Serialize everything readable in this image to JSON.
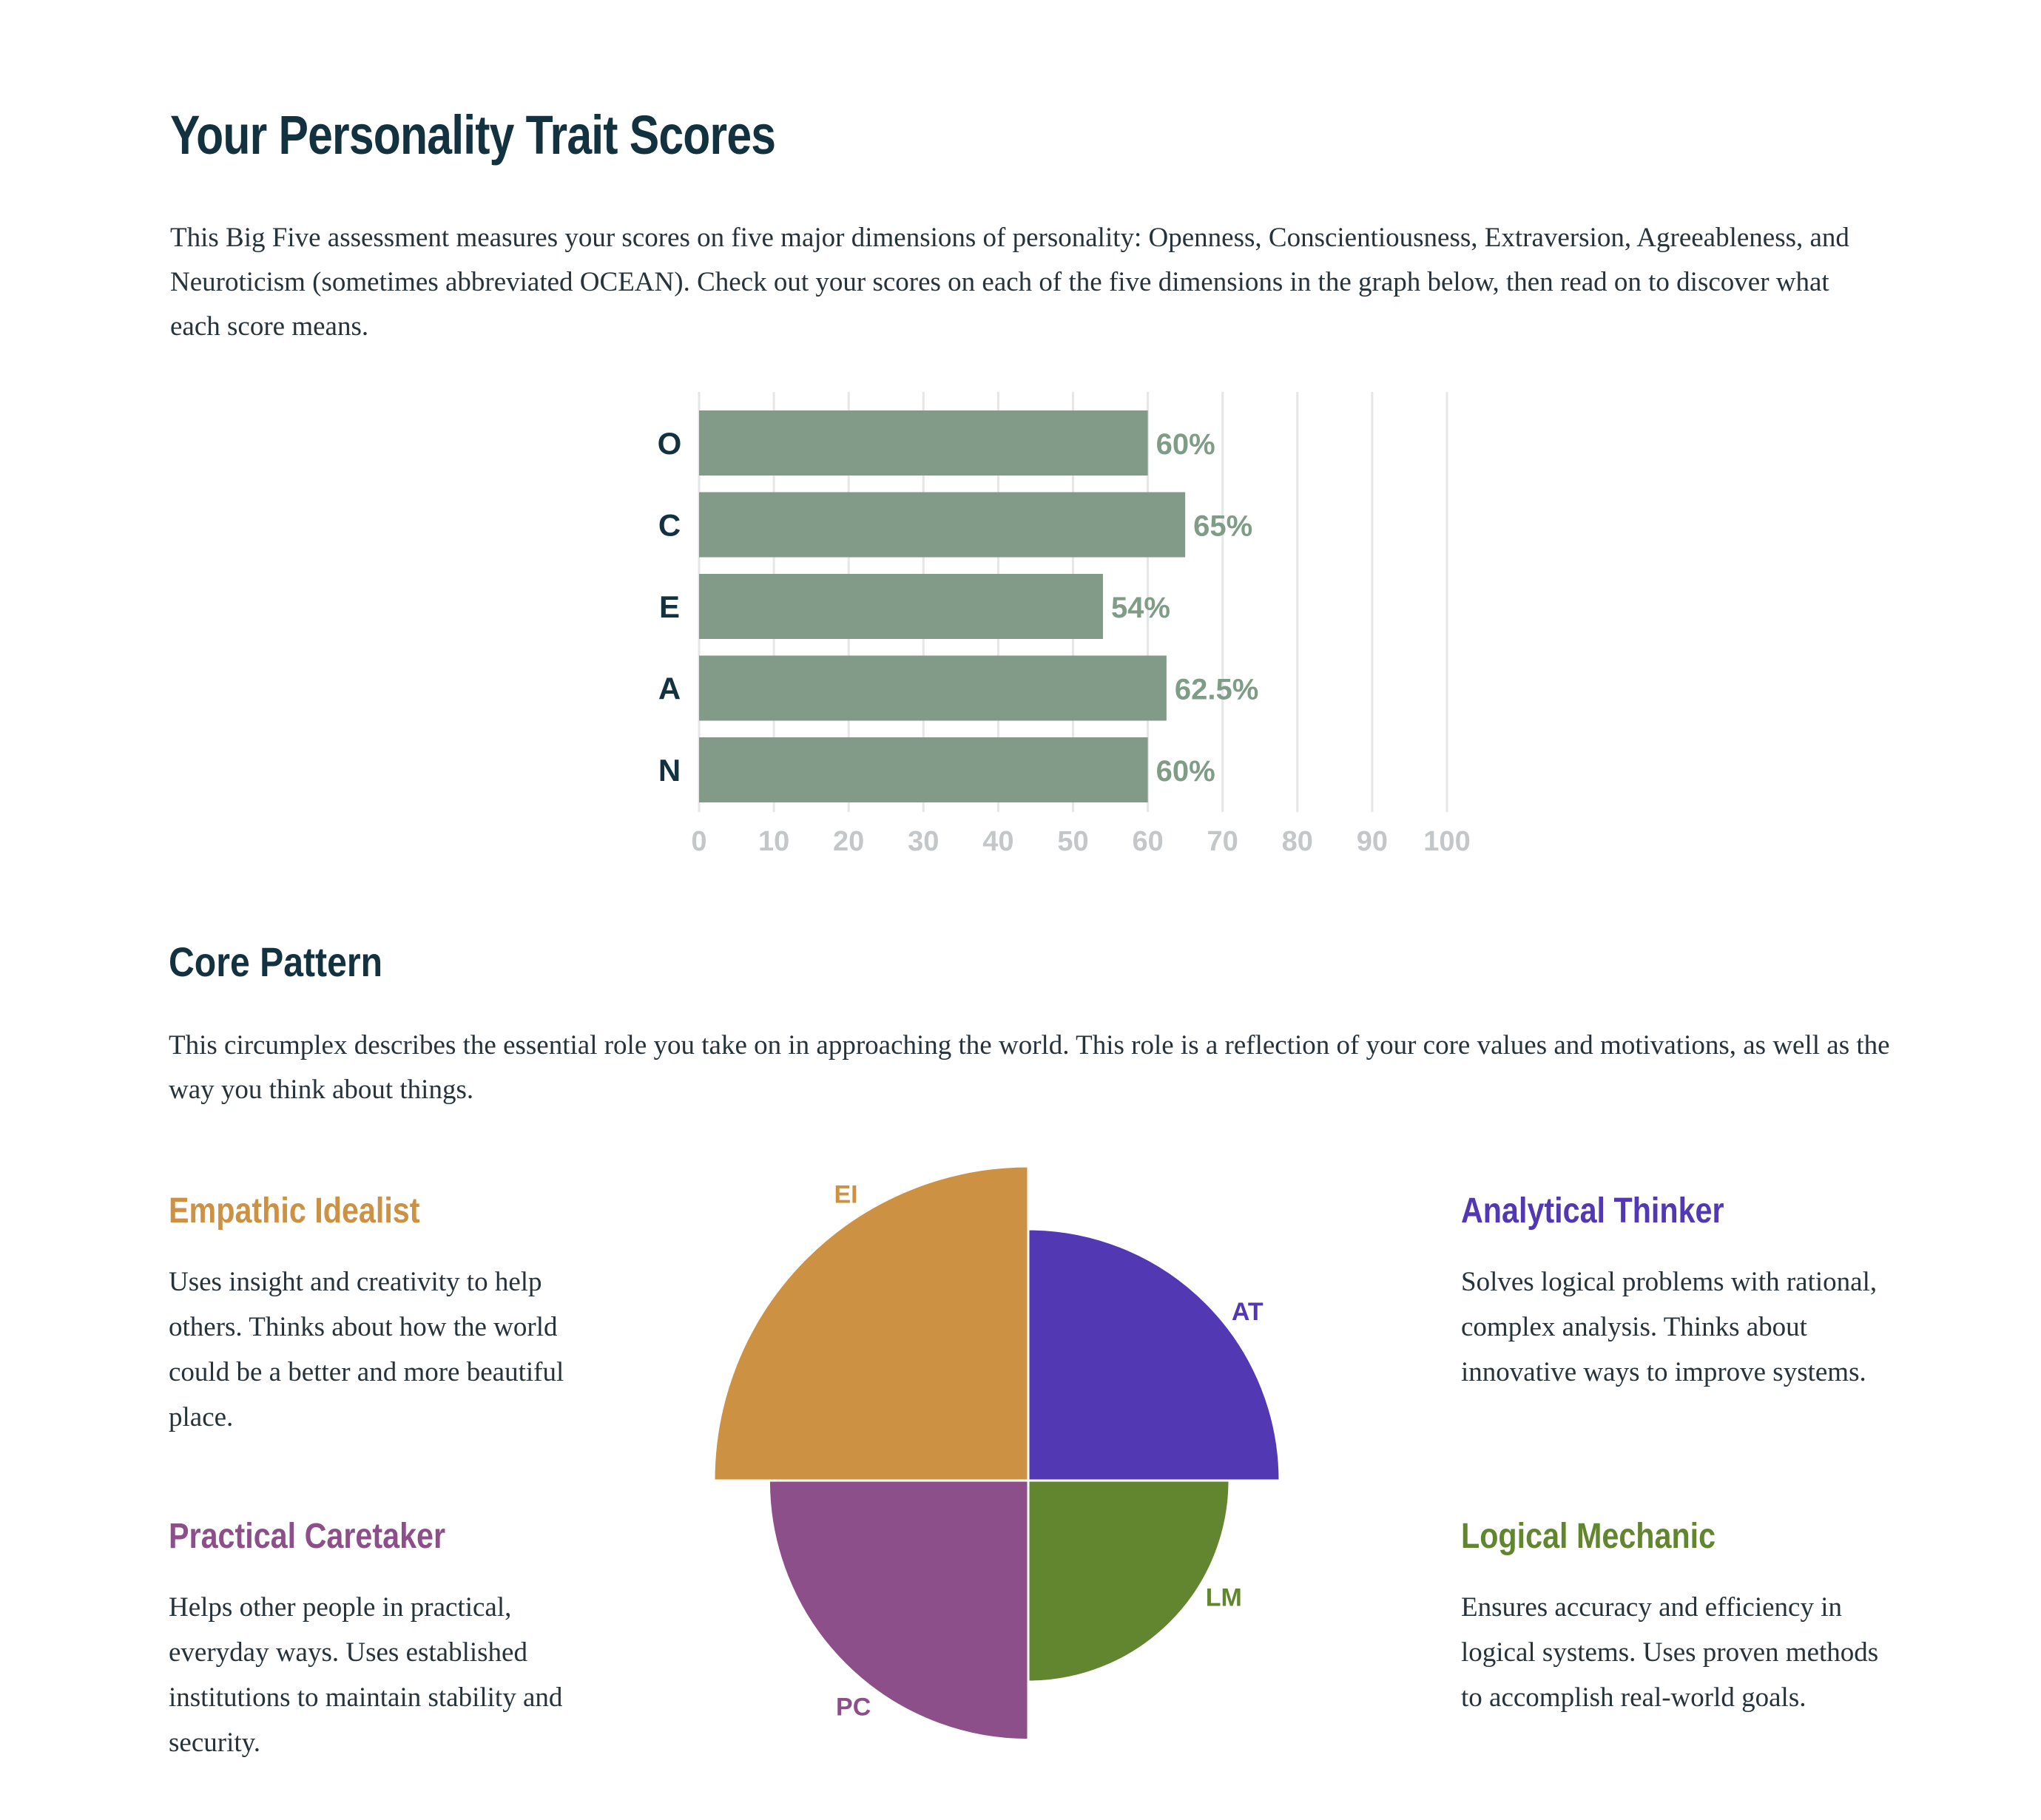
{
  "header": {
    "title": "Your Personality Trait Scores",
    "intro": "This Big Five assessment measures your scores on five major dimensions of personality: Openness, Conscientiousness, Extraversion, Agreeableness, and Neuroticism (sometimes abbreviated OCEAN). Check out your scores on each of the five dimensions in the graph below, then read on to discover what each score means."
  },
  "core": {
    "title": "Core Pattern",
    "intro": "This circumplex describes the essential role you take on in approaching the world. This role is a reflection of your core values and motivations, as well as the way you think about things."
  },
  "types": {
    "ei": {
      "title": "Empathic Idealist",
      "desc": "Uses insight and creativity to help others. Thinks about how the world could be a better and more beautiful place.",
      "color": "#cc9143"
    },
    "at": {
      "title": "Analytical Thinker",
      "desc": "Solves logical problems with rational, complex analysis. Thinks about innovative ways to improve systems.",
      "color": "#5238b2"
    },
    "pc": {
      "title": "Practical Caretaker",
      "desc": "Helps other people in practical, everyday ways. Uses established institutions to maintain stability and security.",
      "color": "#8c4f8a"
    },
    "lm": {
      "title": "Logical Mechanic",
      "desc": "Ensures accuracy and efficiency in logical systems. Uses proven methods to accomplish real-world goals.",
      "color": "#62862f"
    }
  },
  "chart_data": [
    {
      "type": "bar",
      "orientation": "horizontal",
      "categories": [
        "O",
        "C",
        "E",
        "A",
        "N"
      ],
      "values": [
        60,
        65,
        54,
        62.5,
        60
      ],
      "value_labels": [
        "60%",
        "65%",
        "54%",
        "62.5%",
        "60%"
      ],
      "xlim": [
        0,
        100
      ],
      "xticks": [
        0,
        10,
        20,
        30,
        40,
        50,
        60,
        70,
        80,
        90,
        100
      ],
      "grid": true,
      "bar_color": "#829b88",
      "label_color": "#7f9c87",
      "category_color": "#13323f",
      "tick_color": "#c3c7c9"
    },
    {
      "type": "polar-area",
      "categories": [
        "EI",
        "AT",
        "PC",
        "LM"
      ],
      "values": [
        100,
        80,
        82.5,
        64
      ],
      "colors": [
        "#cc9143",
        "#5238b2",
        "#8c4f8a",
        "#62862f"
      ]
    }
  ]
}
